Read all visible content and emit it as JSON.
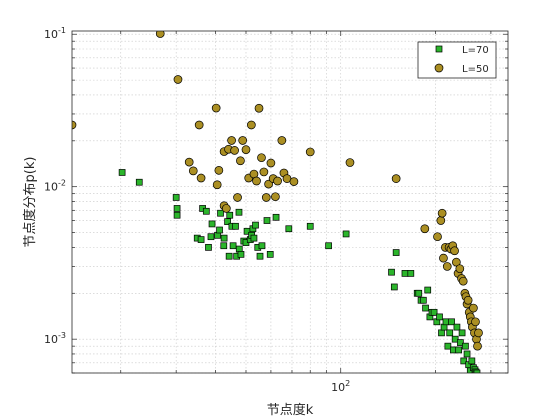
{
  "chart_data": {
    "type": "scatter",
    "title": "",
    "xlabel": "节点度k",
    "ylabel": "节点度分布p(k)",
    "x_scale": "log",
    "y_scale": "log",
    "xlim": [
      14,
      340
    ],
    "ylim": [
      0.0006,
      0.105
    ],
    "x_ticks": [
      {
        "value": 100,
        "base": "10",
        "exp": "2"
      }
    ],
    "y_ticks": [
      {
        "value": 0.1,
        "base": "10",
        "exp": "-1"
      },
      {
        "value": 0.01,
        "base": "10",
        "exp": "-2"
      },
      {
        "value": 0.001,
        "base": "10",
        "exp": "-3"
      }
    ],
    "grid": true,
    "minor_grid": true,
    "legend_position": "top-right",
    "series": [
      {
        "name": "L=70",
        "marker": "square",
        "color": "#2bb52b",
        "edge_color": "#000000",
        "points": [
          [
            20.2,
            0.0124
          ],
          [
            22.9,
            0.0107
          ],
          [
            30.0,
            0.0085
          ],
          [
            30.2,
            0.0072
          ],
          [
            30.2,
            0.0065
          ],
          [
            35.0,
            0.0046
          ],
          [
            36.0,
            0.0045
          ],
          [
            36.4,
            0.0072
          ],
          [
            37.4,
            0.0069
          ],
          [
            38.0,
            0.004
          ],
          [
            38.7,
            0.0047
          ],
          [
            39.0,
            0.0057
          ],
          [
            40.6,
            0.0048
          ],
          [
            41.2,
            0.0052
          ],
          [
            41.5,
            0.0067
          ],
          [
            42.5,
            0.0041
          ],
          [
            42.6,
            0.0046
          ],
          [
            43.7,
            0.0059
          ],
          [
            44.2,
            0.0035
          ],
          [
            44.4,
            0.0065
          ],
          [
            45.1,
            0.0055
          ],
          [
            45.5,
            0.0041
          ],
          [
            46.3,
            0.0055
          ],
          [
            46.7,
            0.0035
          ],
          [
            47.5,
            0.0068
          ],
          [
            47.6,
            0.0039
          ],
          [
            48.2,
            0.0036
          ],
          [
            49.2,
            0.0044
          ],
          [
            50.0,
            0.0043
          ],
          [
            50.4,
            0.0051
          ],
          [
            51.6,
            0.0045
          ],
          [
            52.1,
            0.0048
          ],
          [
            52.6,
            0.0053
          ],
          [
            53.0,
            0.0046
          ],
          [
            53.6,
            0.0056
          ],
          [
            54.5,
            0.004
          ],
          [
            55.4,
            0.0035
          ],
          [
            56.2,
            0.0041
          ],
          [
            58.3,
            0.006
          ],
          [
            59.7,
            0.0036
          ],
          [
            62.3,
            0.0063
          ],
          [
            68.4,
            0.0053
          ],
          [
            80.0,
            0.0055
          ],
          [
            91.5,
            0.0041
          ],
          [
            104,
            0.0049
          ],
          [
            145,
            0.00275
          ],
          [
            148,
            0.0022
          ],
          [
            150,
            0.0037
          ],
          [
            160,
            0.0027
          ],
          [
            167,
            0.0027
          ],
          [
            175,
            0.002
          ],
          [
            177,
            0.002
          ],
          [
            180,
            0.0018
          ],
          [
            183,
            0.0018
          ],
          [
            186,
            0.0016
          ],
          [
            189,
            0.0021
          ],
          [
            192,
            0.0014
          ],
          [
            195,
            0.0015
          ],
          [
            198,
            0.0015
          ],
          [
            202,
            0.0013
          ],
          [
            206,
            0.0014
          ],
          [
            209,
            0.0011
          ],
          [
            213,
            0.0012
          ],
          [
            216,
            0.0013
          ],
          [
            219,
            0.0009
          ],
          [
            222,
            0.0011
          ],
          [
            225,
            0.0013
          ],
          [
            228,
            0.00085
          ],
          [
            231,
            0.001
          ],
          [
            234,
            0.0012
          ],
          [
            237,
            0.00085
          ],
          [
            240,
            0.00095
          ],
          [
            243,
            0.0011
          ],
          [
            246,
            0.00072
          ],
          [
            249,
            0.0009
          ],
          [
            252,
            0.0008
          ],
          [
            255,
            0.00068
          ],
          [
            258,
            0.00062
          ],
          [
            261,
            0.00072
          ],
          [
            264,
            0.00065
          ],
          [
            267,
            0.00063
          ],
          [
            269,
            0.00061
          ],
          [
            271,
            0.0006
          ]
        ]
      },
      {
        "name": "L=50",
        "marker": "circle",
        "color": "#ab8f23",
        "edge_color": "#000000",
        "points": [
          [
            14.0,
            0.0254
          ],
          [
            26.7,
            0.101
          ],
          [
            30.4,
            0.0505
          ],
          [
            33.0,
            0.0145
          ],
          [
            34.0,
            0.0127
          ],
          [
            35.5,
            0.0254
          ],
          [
            36.0,
            0.0114
          ],
          [
            40.2,
            0.0328
          ],
          [
            40.5,
            0.0103
          ],
          [
            41.0,
            0.0128
          ],
          [
            42.6,
            0.017
          ],
          [
            42.6,
            0.0075
          ],
          [
            43.3,
            0.0072
          ],
          [
            44.0,
            0.0176
          ],
          [
            45.0,
            0.0201
          ],
          [
            46.0,
            0.0173
          ],
          [
            47.0,
            0.0085
          ],
          [
            48.0,
            0.0148
          ],
          [
            48.8,
            0.0201
          ],
          [
            50.0,
            0.0175
          ],
          [
            51.0,
            0.0114
          ],
          [
            52.0,
            0.0254
          ],
          [
            53.0,
            0.0121
          ],
          [
            54.0,
            0.0109
          ],
          [
            55.0,
            0.0327
          ],
          [
            56.0,
            0.0155
          ],
          [
            57.0,
            0.0125
          ],
          [
            58.0,
            0.0085
          ],
          [
            59.0,
            0.0104
          ],
          [
            60.0,
            0.0143
          ],
          [
            61.0,
            0.0113
          ],
          [
            62.0,
            0.0086
          ],
          [
            63.0,
            0.0109
          ],
          [
            65.0,
            0.0201
          ],
          [
            66.0,
            0.0123
          ],
          [
            67.5,
            0.0113
          ],
          [
            71.0,
            0.0108
          ],
          [
            80.0,
            0.0169
          ],
          [
            107,
            0.0144
          ],
          [
            150,
            0.0113
          ],
          [
            185,
            0.0053
          ],
          [
            203,
            0.0047
          ],
          [
            208,
            0.006
          ],
          [
            210,
            0.0067
          ],
          [
            212,
            0.0034
          ],
          [
            215,
            0.004
          ],
          [
            218,
            0.003
          ],
          [
            221,
            0.004
          ],
          [
            224,
            0.0039
          ],
          [
            227,
            0.0041
          ],
          [
            230,
            0.0038
          ],
          [
            233,
            0.0032
          ],
          [
            236,
            0.0027
          ],
          [
            239,
            0.0029
          ],
          [
            242,
            0.0025
          ],
          [
            245,
            0.0024
          ],
          [
            248,
            0.002
          ],
          [
            250,
            0.0019
          ],
          [
            252,
            0.0017
          ],
          [
            254,
            0.0018
          ],
          [
            256,
            0.0015
          ],
          [
            258,
            0.0014
          ],
          [
            260,
            0.0013
          ],
          [
            262,
            0.0012
          ],
          [
            264,
            0.0016
          ],
          [
            266,
            0.0011
          ],
          [
            268,
            0.0013
          ],
          [
            270,
            0.001
          ],
          [
            272,
            0.0009
          ],
          [
            274,
            0.0011
          ]
        ]
      }
    ]
  }
}
